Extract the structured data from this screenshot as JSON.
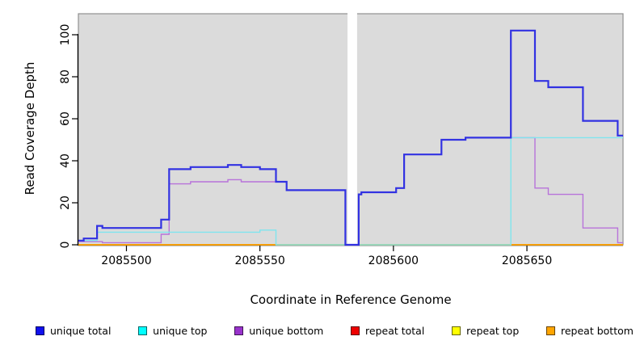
{
  "figure": {
    "xlabel": "Coordinate in Reference Genome",
    "ylabel": "Read Coverage Depth"
  },
  "style": {
    "plot_bg": "#DBDBDB",
    "plot_border": "#8F8F8F",
    "gap_band_color": "#FFFFFF",
    "axis_color": "#000000"
  },
  "legend": {
    "items": [
      {
        "label": "unique total",
        "color": "#1010EE"
      },
      {
        "label": "unique top",
        "color": "#00FFFF"
      },
      {
        "label": "unique bottom",
        "color": "#9932CC"
      },
      {
        "label": "repeat total",
        "color": "#EE0000"
      },
      {
        "label": "repeat top",
        "color": "#FFFF00"
      },
      {
        "label": "repeat bottom",
        "color": "#FFA500"
      }
    ]
  },
  "chart_data": {
    "type": "line",
    "subtype": "step",
    "title": "",
    "xlabel": "Coordinate in Reference Genome",
    "ylabel": "Read Coverage Depth",
    "x_ticks": [
      "2085500",
      "2085550",
      "2085600",
      "2085650"
    ],
    "x_tick_values": [
      2085500,
      2085550,
      2085600,
      2085650
    ],
    "y_ticks": [
      "0",
      "20",
      "40",
      "60",
      "80",
      "100"
    ],
    "y_tick_values": [
      0,
      20,
      40,
      60,
      80,
      100
    ],
    "x_range": [
      2085482,
      2085686
    ],
    "y_range": [
      0,
      110
    ],
    "grid": false,
    "legend_position": "bottom",
    "gap_region": [
      2085582.8,
      2085586.4
    ],
    "series": [
      {
        "name": "repeat total",
        "line_color": "#DD2222",
        "points": [
          [
            2085482,
            0
          ]
        ]
      },
      {
        "name": "repeat top",
        "line_color": "#EEE800",
        "points": [
          [
            2085482,
            0
          ]
        ]
      },
      {
        "name": "repeat bottom",
        "line_color": "#FF9D00",
        "points": [
          [
            2085482,
            0
          ]
        ]
      },
      {
        "name": "unique bottom",
        "line_color": "#B873DA",
        "points": [
          [
            2085482,
            1.5
          ],
          [
            2085491,
            1
          ],
          [
            2085513,
            5
          ],
          [
            2085516,
            29
          ],
          [
            2085524,
            30
          ],
          [
            2085538,
            31
          ],
          [
            2085543,
            30
          ],
          [
            2085560,
            26
          ],
          [
            2085582,
            0
          ],
          [
            2085587,
            24
          ],
          [
            2085588,
            25
          ],
          [
            2085601,
            27
          ],
          [
            2085604,
            43
          ],
          [
            2085618,
            50
          ],
          [
            2085627,
            51
          ],
          [
            2085653,
            27
          ],
          [
            2085658,
            24
          ],
          [
            2085671,
            8
          ],
          [
            2085684,
            1
          ]
        ]
      },
      {
        "name": "unique top",
        "line_color": "#7FE5EE",
        "points": [
          [
            2085482,
            2
          ],
          [
            2085489,
            6
          ],
          [
            2085550,
            7
          ],
          [
            2085556,
            0
          ],
          [
            2085644,
            51
          ]
        ]
      },
      {
        "name": "unique total",
        "line_color": "#3232E2",
        "points": [
          [
            2085482,
            2
          ],
          [
            2085484,
            3
          ],
          [
            2085489,
            9
          ],
          [
            2085491,
            8
          ],
          [
            2085513,
            12
          ],
          [
            2085516,
            36
          ],
          [
            2085524,
            37
          ],
          [
            2085538,
            38
          ],
          [
            2085543,
            37
          ],
          [
            2085550,
            36
          ],
          [
            2085556,
            30
          ],
          [
            2085560,
            26
          ],
          [
            2085582,
            0
          ],
          [
            2085587,
            24
          ],
          [
            2085588,
            25
          ],
          [
            2085601,
            27
          ],
          [
            2085604,
            43
          ],
          [
            2085618,
            50
          ],
          [
            2085627,
            51
          ],
          [
            2085644,
            102
          ],
          [
            2085653,
            78
          ],
          [
            2085658,
            75
          ],
          [
            2085671,
            59
          ],
          [
            2085684,
            52
          ]
        ]
      }
    ]
  }
}
